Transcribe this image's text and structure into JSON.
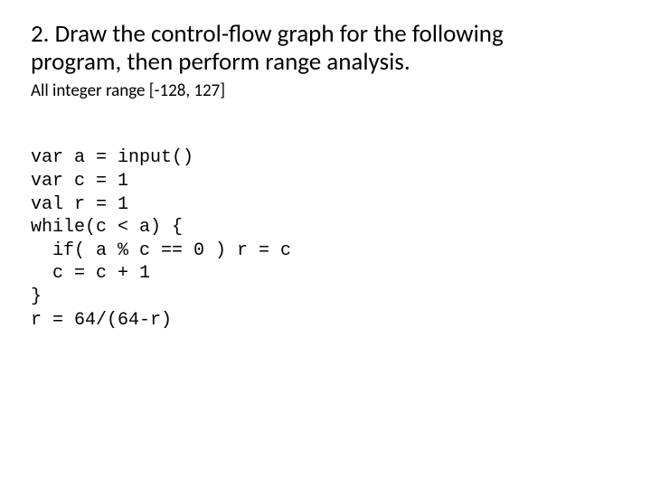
{
  "title_line1": "2. Draw the control-flow graph for the following",
  "title_line2": "program, then perform range analysis.",
  "subtitle": "All integer range [-128, 127]",
  "code_lines": [
    "var a = input()",
    "var c = 1",
    "val r = 1",
    "while(c < a) {",
    "  if( a % c == 0 ) r = c",
    "  c = c + 1",
    "}",
    "r = 64/(64-r)"
  ],
  "colors": {
    "background": "#ffffff",
    "text": "#000000"
  },
  "fonts": {
    "heading_family": "Calibri",
    "heading_size_pt": 27,
    "subtitle_size_pt": 19,
    "code_family": "Courier New",
    "code_size_pt": 20
  }
}
